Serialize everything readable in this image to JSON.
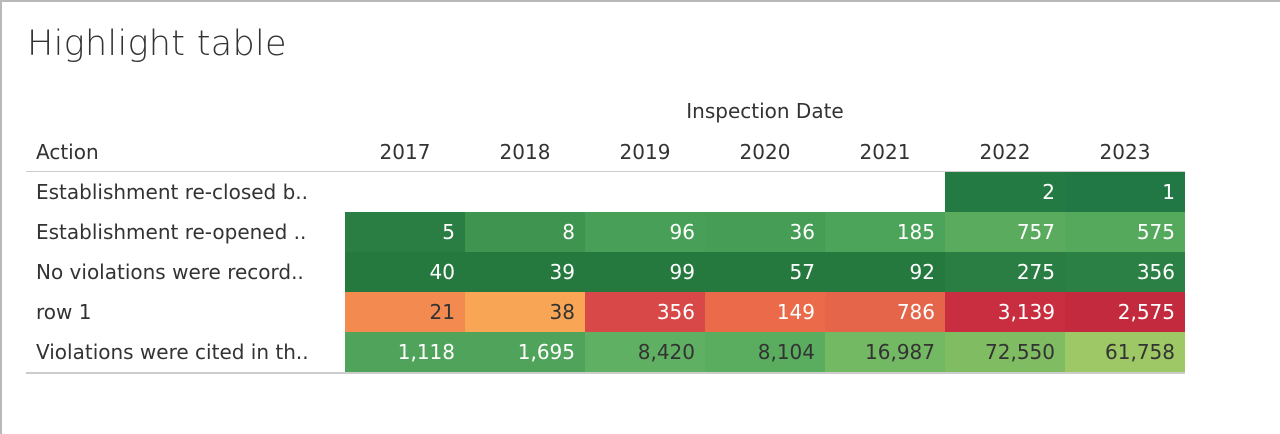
{
  "title": "Highlight table",
  "column_group_label": "Inspection Date",
  "row_header_label": "Action",
  "chart_data": {
    "type": "table",
    "title": "Highlight table",
    "columns": [
      "2017",
      "2018",
      "2019",
      "2020",
      "2021",
      "2022",
      "2023"
    ],
    "rows": [
      {
        "label": "Establishment re-closed b..",
        "cells": [
          {
            "value": "",
            "color": "#ffffff",
            "text": "#ffffff"
          },
          {
            "value": "",
            "color": "#ffffff",
            "text": "#ffffff"
          },
          {
            "value": "",
            "color": "#ffffff",
            "text": "#ffffff"
          },
          {
            "value": "",
            "color": "#ffffff",
            "text": "#ffffff"
          },
          {
            "value": "",
            "color": "#ffffff",
            "text": "#ffffff"
          },
          {
            "value": "2",
            "color": "#237a43",
            "text": "#ffffff"
          },
          {
            "value": "1",
            "color": "#217844",
            "text": "#ffffff"
          }
        ]
      },
      {
        "label": "Establishment re-opened ..",
        "cells": [
          {
            "value": "5",
            "color": "#2a7d43",
            "text": "#ffffff"
          },
          {
            "value": "8",
            "color": "#3f9450",
            "text": "#ffffff"
          },
          {
            "value": "96",
            "color": "#48a058",
            "text": "#ffffff"
          },
          {
            "value": "36",
            "color": "#469e56",
            "text": "#ffffff"
          },
          {
            "value": "185",
            "color": "#4ca45a",
            "text": "#ffffff"
          },
          {
            "value": "757",
            "color": "#5aab5d",
            "text": "#ffffff"
          },
          {
            "value": "575",
            "color": "#55a95c",
            "text": "#ffffff"
          }
        ]
      },
      {
        "label": "No violations were record..",
        "cells": [
          {
            "value": "40",
            "color": "#25793f",
            "text": "#ffffff"
          },
          {
            "value": "39",
            "color": "#25793f",
            "text": "#ffffff"
          },
          {
            "value": "99",
            "color": "#25793f",
            "text": "#ffffff"
          },
          {
            "value": "57",
            "color": "#25793f",
            "text": "#ffffff"
          },
          {
            "value": "92",
            "color": "#25793f",
            "text": "#ffffff"
          },
          {
            "value": "275",
            "color": "#2a7e44",
            "text": "#ffffff"
          },
          {
            "value": "356",
            "color": "#2b8045",
            "text": "#ffffff"
          }
        ]
      },
      {
        "label": "row 1",
        "cells": [
          {
            "value": "21",
            "color": "#f38a4f",
            "text": "#333333"
          },
          {
            "value": "38",
            "color": "#f8a656",
            "text": "#333333"
          },
          {
            "value": "356",
            "color": "#d94848",
            "text": "#ffffff"
          },
          {
            "value": "149",
            "color": "#ea6a4a",
            "text": "#ffffff"
          },
          {
            "value": "786",
            "color": "#e5654b",
            "text": "#ffffff"
          },
          {
            "value": "3,139",
            "color": "#c92e40",
            "text": "#ffffff"
          },
          {
            "value": "2,575",
            "color": "#c42a3d",
            "text": "#ffffff"
          }
        ]
      },
      {
        "label": "Violations were cited in th..",
        "cells": [
          {
            "value": "1,118",
            "color": "#4fa35b",
            "text": "#ffffff"
          },
          {
            "value": "1,695",
            "color": "#4fa35b",
            "text": "#ffffff"
          },
          {
            "value": "8,420",
            "color": "#5fb063",
            "text": "#333333"
          },
          {
            "value": "8,104",
            "color": "#5aac5f",
            "text": "#333333"
          },
          {
            "value": "16,987",
            "color": "#73b862",
            "text": "#333333"
          },
          {
            "value": "72,550",
            "color": "#7fbc62",
            "text": "#333333"
          },
          {
            "value": "61,758",
            "color": "#9ec865",
            "text": "#333333"
          }
        ]
      }
    ]
  }
}
